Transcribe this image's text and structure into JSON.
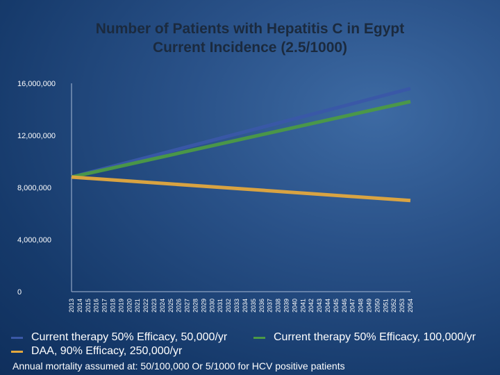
{
  "title_line1": "Number of Patients with Hepatitis C in Egypt",
  "title_line2": "Current Incidence (2.5/1000)",
  "note": "Annual mortality assumed at: 50/100,000 Or 5/1000 for HCV positive patients",
  "chart_data": {
    "type": "line",
    "x": [
      "2013",
      "2014",
      "2015",
      "2016",
      "2017",
      "2018",
      "2019",
      "2020",
      "2021",
      "2022",
      "2023",
      "2024",
      "2025",
      "2026",
      "2027",
      "2028",
      "2029",
      "2030",
      "2031",
      "2032",
      "2033",
      "2034",
      "2035",
      "2036",
      "2037",
      "2038",
      "2039",
      "2040",
      "2041",
      "2042",
      "2043",
      "2044",
      "2045",
      "2046",
      "2047",
      "2048",
      "2049",
      "2050",
      "2051",
      "2052",
      "2053",
      "2054"
    ],
    "ylim": [
      0,
      16000000
    ],
    "yticks": [
      0,
      4000000,
      8000000,
      12000000,
      16000000
    ],
    "ytick_labels": [
      "0",
      "4,000,000",
      "8,000,000",
      "12,000,000",
      "16,000,000"
    ],
    "series": [
      {
        "name": "Current therapy 50% Efficacy, 50,000/yr",
        "color": "#3a58a8",
        "start": 8800000,
        "end": 15600000
      },
      {
        "name": "Current therapy 50% Efficacy, 100,000/yr",
        "color": "#4c9a45",
        "start": 8800000,
        "end": 14600000
      },
      {
        "name": "DAA, 90% Efficacy, 250,000/yr",
        "color": "#e3a83e",
        "start": 8800000,
        "end": 7000000
      }
    ]
  }
}
